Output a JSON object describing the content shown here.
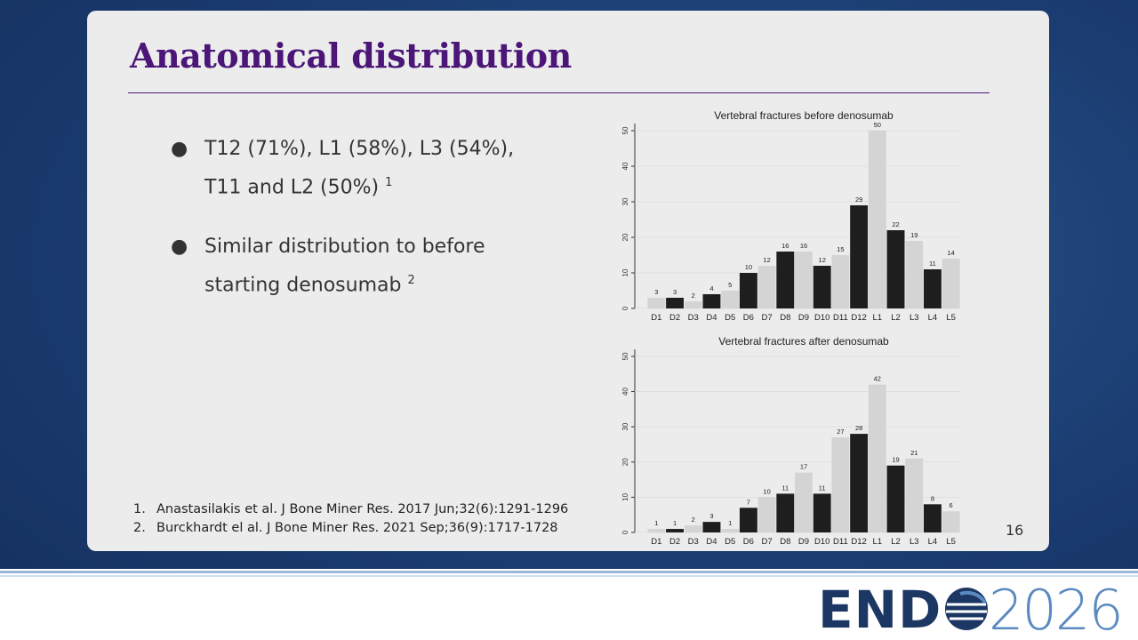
{
  "slide": {
    "title": "Anatomical distribution",
    "bullets": [
      {
        "text": "T12 (71%), L1 (58%), L3 (54%), T11 and L2 (50%)",
        "ref": "1"
      },
      {
        "text": "Similar distribution to before starting denosumab",
        "ref": "2"
      }
    ],
    "references": [
      {
        "number": "1.",
        "text": "Anastasilakis et al. J Bone Miner Res. 2017 Jun;32(6):1291-1296"
      },
      {
        "number": "2.",
        "text": "Burckhardt el al. J Bone Miner Res. 2021 Sep;36(9):1717-1728"
      }
    ],
    "page_number": "16",
    "logo": {
      "left": "END",
      "right": "2026"
    }
  },
  "chart_data": [
    {
      "type": "bar",
      "title": "Vertebral fractures before denosumab",
      "categories": [
        "D1",
        "D2",
        "D3",
        "D4",
        "D5",
        "D6",
        "D7",
        "D8",
        "D9",
        "D10",
        "D11",
        "D12",
        "L1",
        "L2",
        "L3",
        "L4",
        "L5"
      ],
      "values": [
        3,
        3,
        2,
        4,
        5,
        10,
        12,
        16,
        16,
        12,
        15,
        29,
        50,
        22,
        19,
        11,
        14
      ],
      "colors": [
        "#d4d4d4",
        "#1e1e1e",
        "#d4d4d4",
        "#1e1e1e",
        "#d4d4d4",
        "#1e1e1e",
        "#d4d4d4",
        "#1e1e1e",
        "#d4d4d4",
        "#1e1e1e",
        "#d4d4d4",
        "#1e1e1e",
        "#d4d4d4",
        "#1e1e1e",
        "#d4d4d4",
        "#1e1e1e",
        "#d4d4d4"
      ],
      "ylim": [
        0,
        52
      ],
      "yticks": [
        0,
        10,
        20,
        30,
        40,
        50
      ],
      "grid": true
    },
    {
      "type": "bar",
      "title": "Vertebral fractures after denosumab",
      "categories": [
        "D1",
        "D2",
        "D3",
        "D4",
        "D5",
        "D6",
        "D7",
        "D8",
        "D9",
        "D10",
        "D11",
        "D12",
        "L1",
        "L2",
        "L3",
        "L4",
        "L5"
      ],
      "values": [
        1,
        1,
        2,
        3,
        1,
        7,
        10,
        11,
        17,
        11,
        27,
        28,
        42,
        19,
        21,
        8,
        6
      ],
      "colors": [
        "#d4d4d4",
        "#1e1e1e",
        "#d4d4d4",
        "#1e1e1e",
        "#d4d4d4",
        "#1e1e1e",
        "#d4d4d4",
        "#1e1e1e",
        "#d4d4d4",
        "#1e1e1e",
        "#d4d4d4",
        "#1e1e1e",
        "#d4d4d4",
        "#1e1e1e",
        "#d4d4d4",
        "#1e1e1e",
        "#d4d4d4"
      ],
      "ylim": [
        0,
        52
      ],
      "yticks": [
        0,
        10,
        20,
        30,
        40,
        50
      ],
      "grid": true
    }
  ]
}
